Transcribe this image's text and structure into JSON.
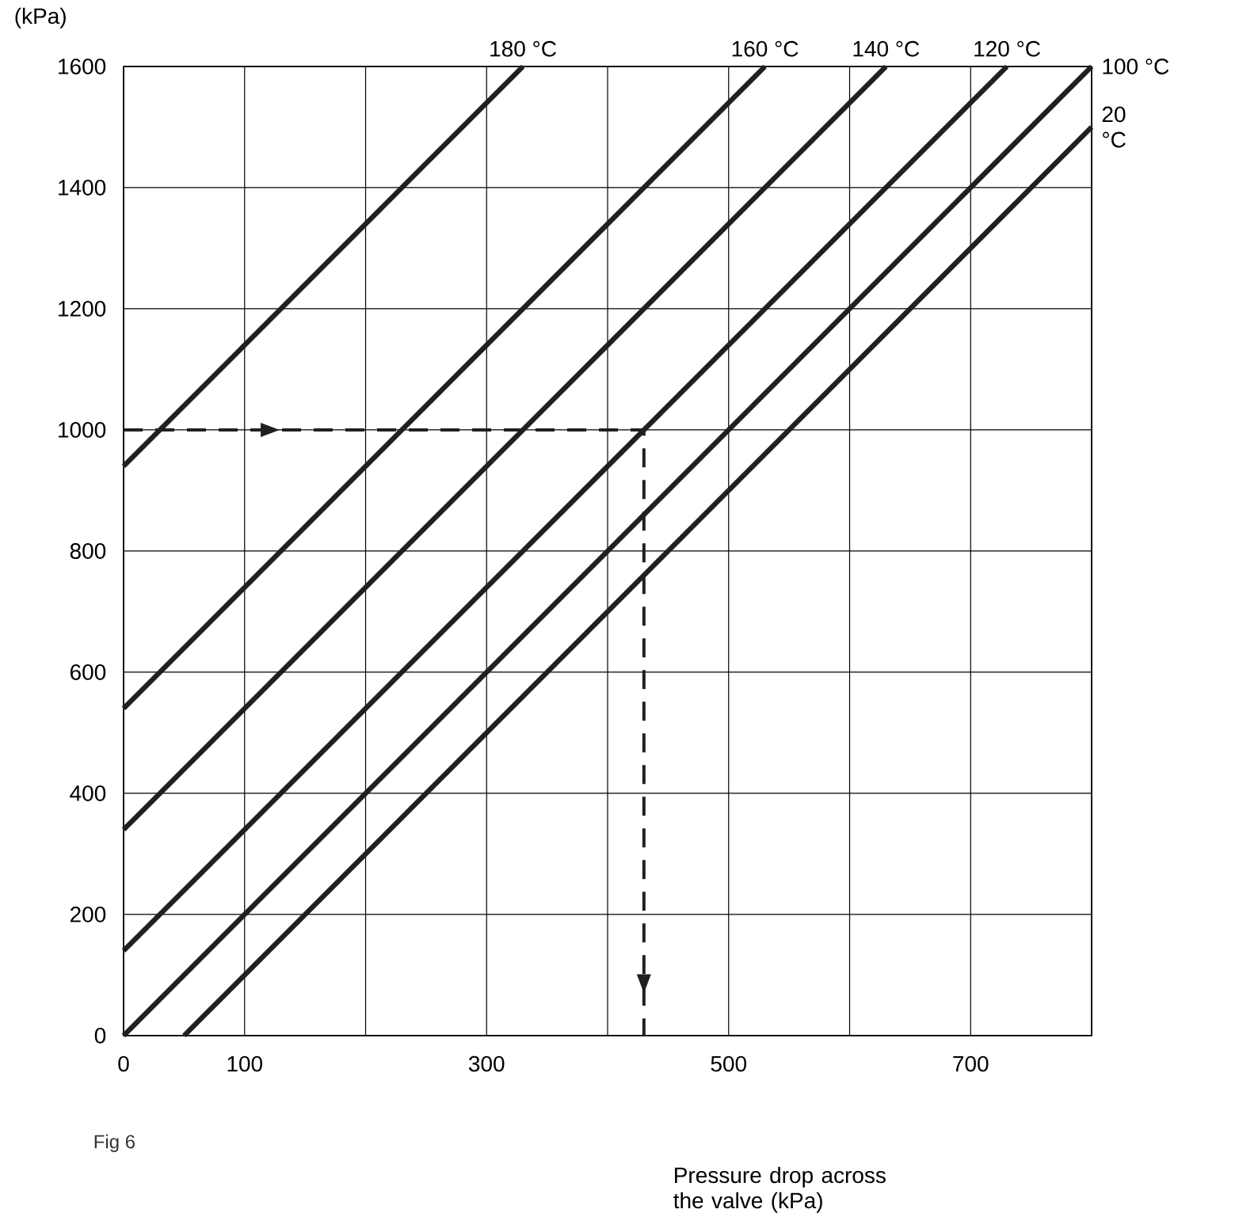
{
  "chart_data": {
    "type": "line",
    "ylabel": "(kPa)",
    "series": [
      {
        "name": "180 °C",
        "color": "#231f20",
        "x": [
          0,
          330
        ],
        "values": [
          940,
          1600
        ]
      },
      {
        "name": "160 °C",
        "color": "#231f20",
        "x": [
          0,
          530
        ],
        "values": [
          540,
          1600
        ]
      },
      {
        "name": "140 °C",
        "color": "#231f20",
        "x": [
          0,
          630
        ],
        "values": [
          340,
          1600
        ]
      },
      {
        "name": "120 °C",
        "color": "#231f20",
        "x": [
          0,
          730
        ],
        "values": [
          140,
          1600
        ]
      },
      {
        "name": "100 °C",
        "color": "#231f20",
        "x": [
          0,
          800
        ],
        "values": [
          0,
          1600
        ]
      },
      {
        "name": "20 °C",
        "color": "#231f20",
        "x": [
          50,
          800
        ],
        "values": [
          0,
          1500
        ]
      },
      {
        "color": "#231f20",
        "x": [
          0,
          430,
          430
        ],
        "values": [
          1000,
          1000,
          0
        ],
        "line_style": "dashed"
      }
    ],
    "xlim": [
      0,
      800
    ],
    "ylim": [
      0,
      1600
    ],
    "xticks": [
      0,
      100,
      {
        "value": 200,
        "label": null
      },
      300,
      {
        "value": 400,
        "label": null
      },
      500,
      {
        "value": 600,
        "label": null
      },
      700,
      {
        "value": 800,
        "label": null
      }
    ],
    "yticks": [
      0,
      200,
      400,
      600,
      800,
      1000,
      1200,
      1400,
      1600
    ],
    "grid": true,
    "marker": "none",
    "annotations": [
      "Fig 6",
      "Pressure drop across the valve (kPa)"
    ]
  }
}
